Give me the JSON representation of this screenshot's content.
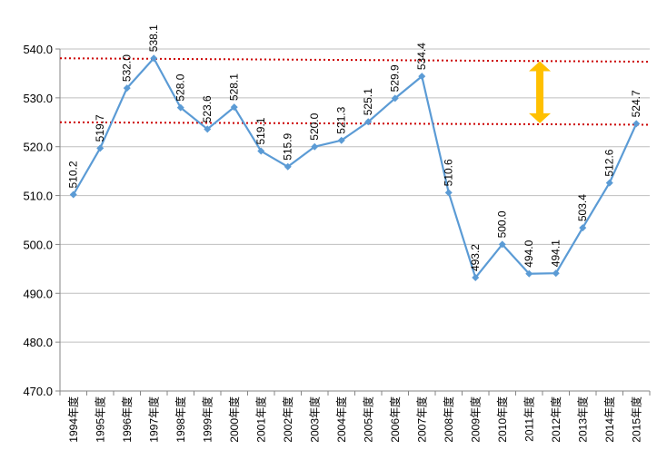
{
  "chart_data": {
    "type": "line",
    "title": "",
    "xlabel": "",
    "ylabel": "",
    "ylim": [
      470,
      540
    ],
    "ytick_step": 10,
    "ytick_labels": [
      "470.0",
      "480.0",
      "490.0",
      "500.0",
      "510.0",
      "520.0",
      "530.0",
      "540.0"
    ],
    "grid": true,
    "legend": "none",
    "categories": [
      "1994年度",
      "1995年度",
      "1996年度",
      "1997年度",
      "1998年度",
      "1999年度",
      "2000年度",
      "2001年度",
      "2002年度",
      "2003年度",
      "2004年度",
      "2005年度",
      "2006年度",
      "2007年度",
      "2008年度",
      "2009年度",
      "2010年度",
      "2011年度",
      "2012年度",
      "2013年度",
      "2014年度",
      "2015年度"
    ],
    "series": [
      {
        "values": [
          510.2,
          519.7,
          532.0,
          538.1,
          528.0,
          523.6,
          528.1,
          519.1,
          515.9,
          520.0,
          521.3,
          525.1,
          529.9,
          534.4,
          510.6,
          493.2,
          500.0,
          494.0,
          494.1,
          503.4,
          512.6,
          524.7
        ],
        "data_labels": [
          "510.2",
          "519.7",
          "532.0",
          "538.1",
          "528.0",
          "523.6",
          "528.1",
          "519.1",
          "515.9",
          "520.0",
          "521.3",
          "525.1",
          "529.9",
          "534.4",
          "510.6",
          "493.2",
          "500.0",
          "494.0",
          "494.1",
          "503.4",
          "512.6",
          "524.7"
        ],
        "color": "#5B9BD5",
        "marker": "diamond"
      }
    ],
    "reference_lines": [
      {
        "from": 538.1,
        "to": 537.4,
        "color": "#CC0000",
        "style": "dotted"
      },
      {
        "from": 525.0,
        "to": 524.5,
        "color": "#CC0000",
        "style": "dotted"
      }
    ],
    "annotations": [
      {
        "type": "double-arrow",
        "category_index": 17.4,
        "from": 537.5,
        "to": 524.8,
        "color": "#FFC000"
      }
    ]
  }
}
